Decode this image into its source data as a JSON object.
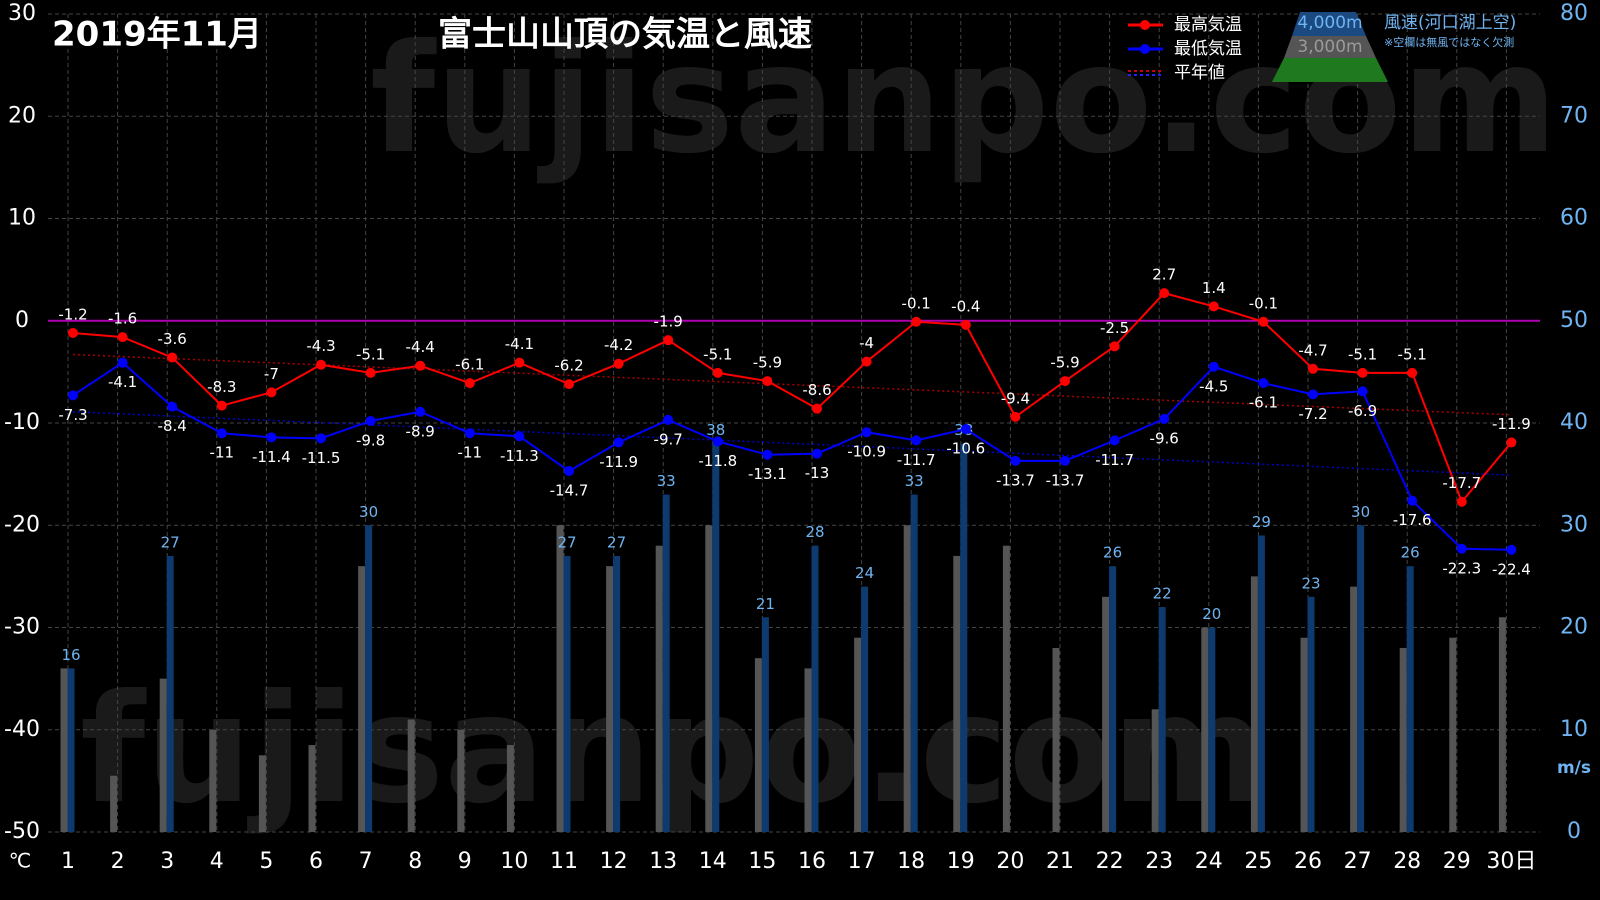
{
  "chart_data": {
    "type": "combo",
    "title": "2019年11月",
    "subtitle": "富士山山頂の気温と風速",
    "watermark": "fujisanpo.com",
    "categories": [
      1,
      2,
      3,
      4,
      5,
      6,
      7,
      8,
      9,
      10,
      11,
      12,
      13,
      14,
      15,
      16,
      17,
      18,
      19,
      20,
      21,
      22,
      23,
      24,
      25,
      26,
      27,
      28,
      29,
      30
    ],
    "xlabel": "日",
    "ylabel": "℃",
    "y2label": "m/s",
    "ylim": [
      -50,
      30
    ],
    "yticks": [
      -50,
      -40,
      -30,
      -20,
      -10,
      0,
      10,
      20,
      30
    ],
    "y2lim": [
      0,
      80
    ],
    "y2ticks": [
      0,
      10,
      20,
      30,
      40,
      50,
      60,
      70,
      80
    ],
    "grid": true,
    "zero_line_color": "#b000b0",
    "series": [
      {
        "name": "最高気温",
        "type": "line",
        "color": "#ff0000",
        "label_side": "above",
        "values": [
          -1.2,
          -1.6,
          -3.6,
          -8.3,
          -7,
          -4.3,
          -5.1,
          -4.4,
          -6.1,
          -4.1,
          -6.2,
          -4.2,
          -1.9,
          -5.1,
          -5.9,
          -8.6,
          -4,
          -0.1,
          -0.4,
          -9.4,
          -5.9,
          -2.5,
          2.7,
          1.4,
          -0.1,
          -4.7,
          -5.1,
          -5.1,
          -17.7,
          -11.9
        ]
      },
      {
        "name": "最低気温",
        "type": "line",
        "color": "#0000ff",
        "label_side": "below",
        "values": [
          -7.3,
          -4.1,
          -8.4,
          -11,
          -11.4,
          -11.5,
          -9.8,
          -8.9,
          -11,
          -11.3,
          -14.7,
          -11.9,
          -9.7,
          -11.8,
          -13.1,
          -13,
          -10.9,
          -11.7,
          -10.6,
          -13.7,
          -13.7,
          -11.7,
          -9.6,
          -4.5,
          -6.1,
          -7.2,
          -6.9,
          -17.6,
          -22.3,
          -22.4
        ]
      },
      {
        "name": "3,000m",
        "type": "bar",
        "axis": "y2",
        "color": "#555555",
        "values": [
          16,
          5.5,
          15,
          10,
          7.5,
          8.5,
          26,
          11,
          10,
          8.5,
          30,
          26,
          28,
          30,
          17,
          16,
          19,
          30,
          27,
          28,
          18,
          23,
          12,
          20,
          25,
          19,
          24,
          18,
          19,
          21
        ]
      },
      {
        "name": "4,000m",
        "type": "bar",
        "axis": "y2",
        "color": "#0d3b70",
        "label_color": "#6fb4f2",
        "values": [
          16,
          null,
          27,
          null,
          null,
          null,
          30,
          null,
          null,
          null,
          27,
          27,
          33,
          38,
          21,
          28,
          24,
          33,
          38,
          null,
          null,
          26,
          22,
          20,
          29,
          23,
          30,
          26,
          null,
          null
        ]
      }
    ],
    "normal": {
      "name": "平年値",
      "x": [
        1,
        30
      ],
      "high": [
        -3.3,
        -9.2
      ],
      "low": [
        -8.9,
        -15.1
      ],
      "high_color": "#aa0000",
      "low_color": "#0000cc"
    },
    "wind_title": "風速(河口湖上空)",
    "wind_note": "※空欄は無風ではなく欠測"
  }
}
